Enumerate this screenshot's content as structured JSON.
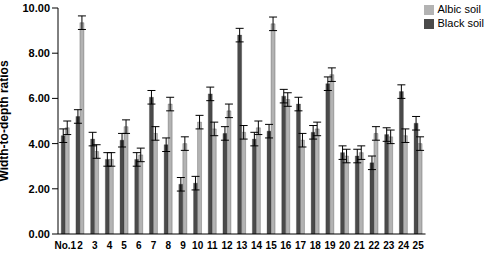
{
  "chart_data": {
    "type": "bar",
    "y_label": "Width-to-depth ratios",
    "categories": [
      "No.1",
      "2",
      "3",
      "4",
      "5",
      "6",
      "7",
      "8",
      "9",
      "10",
      "11",
      "12",
      "13",
      "14",
      "15",
      "16",
      "17",
      "18",
      "19",
      "20",
      "21",
      "22",
      "23",
      "24",
      "25"
    ],
    "series": [
      {
        "name": "Black soil",
        "color": "#4a4a4a",
        "values": [
          4.35,
          5.2,
          4.2,
          3.3,
          4.15,
          3.3,
          6.05,
          3.95,
          2.2,
          2.25,
          6.2,
          4.45,
          8.8,
          4.2,
          4.55,
          6.1,
          5.75,
          4.5,
          6.65,
          3.6,
          3.45,
          3.15,
          4.4,
          6.3,
          4.9
        ],
        "errors": [
          0.3,
          0.3,
          0.3,
          0.3,
          0.3,
          0.3,
          0.3,
          0.3,
          0.3,
          0.3,
          0.3,
          0.3,
          0.3,
          0.3,
          0.3,
          0.3,
          0.3,
          0.3,
          0.3,
          0.3,
          0.3,
          0.3,
          0.3,
          0.3,
          0.3
        ]
      },
      {
        "name": "Albic soil",
        "color": "#b3b3b3",
        "values": [
          4.7,
          9.35,
          3.65,
          3.3,
          4.75,
          3.5,
          4.45,
          5.75,
          4.0,
          4.95,
          4.65,
          5.45,
          4.5,
          4.7,
          9.3,
          5.95,
          4.15,
          4.65,
          7.05,
          3.45,
          3.6,
          4.45,
          4.3,
          4.35,
          4.0
        ],
        "errors": [
          0.3,
          0.3,
          0.3,
          0.3,
          0.3,
          0.3,
          0.3,
          0.3,
          0.3,
          0.3,
          0.3,
          0.3,
          0.3,
          0.3,
          0.3,
          0.3,
          0.3,
          0.3,
          0.3,
          0.3,
          0.3,
          0.3,
          0.3,
          0.3,
          0.3
        ]
      }
    ],
    "ylim": [
      0,
      10
    ],
    "yticks": [
      {
        "value": 0,
        "label": "0.00"
      },
      {
        "value": 2,
        "label": "2.00"
      },
      {
        "value": 4,
        "label": "4.00"
      },
      {
        "value": 6,
        "label": "6.00"
      },
      {
        "value": 8,
        "label": "8.00"
      },
      {
        "value": 10,
        "label": "10.00"
      }
    ],
    "grid": false,
    "legend": "upper right"
  }
}
